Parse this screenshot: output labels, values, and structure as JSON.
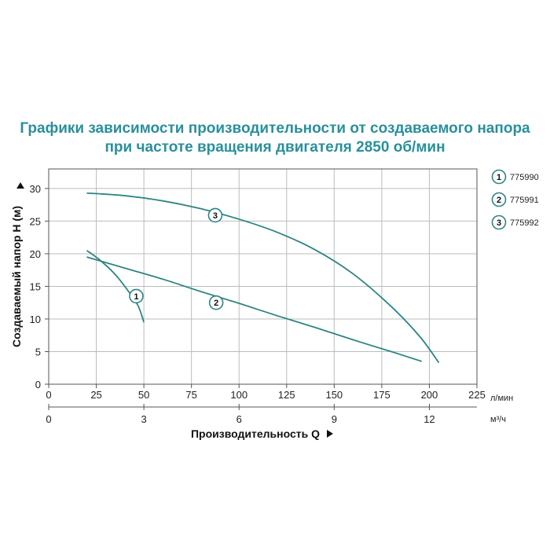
{
  "title_line1": "Графики зависимости производительности от создаваемого напора",
  "title_line2": "при частоте вращения двигателя 2850 об/мин",
  "colors": {
    "title": "#2a8f9c",
    "curve": "#2e8583",
    "grid": "#b9bdbf",
    "frame": "#555555"
  },
  "chart_data": {
    "type": "line",
    "ylabel": "Создаваемый напор Н (м)",
    "xlabel": "Производительность Q",
    "x_unit": "л/мин",
    "x2_unit": "м³/ч",
    "xlim": [
      0,
      225
    ],
    "ylim": [
      0,
      33
    ],
    "x_ticks": [
      0,
      25,
      50,
      75,
      100,
      125,
      150,
      175,
      200,
      225
    ],
    "x2_ticks": [
      0,
      3,
      6,
      9,
      12
    ],
    "y_ticks": [
      0,
      5,
      10,
      15,
      20,
      25,
      30
    ],
    "grid": true,
    "legend_position": "right",
    "series": [
      {
        "name": "775990",
        "marker": "1",
        "label_at": [
          46,
          13.5
        ],
        "x": [
          20,
          27,
          35,
          42,
          47,
          50
        ],
        "y": [
          20.5,
          19,
          16.8,
          14.2,
          12,
          9.5
        ]
      },
      {
        "name": "775991",
        "marker": "2",
        "label_at": [
          88,
          12.5
        ],
        "x": [
          20,
          40,
          60,
          80,
          100,
          120,
          140,
          160,
          180,
          196
        ],
        "y": [
          19.5,
          17.8,
          16.1,
          14.2,
          12.4,
          10.5,
          8.7,
          6.8,
          5,
          3.5
        ]
      },
      {
        "name": "775992",
        "marker": "3",
        "label_at": [
          87.5,
          25.9
        ],
        "x": [
          20,
          40,
          60,
          80,
          100,
          120,
          140,
          160,
          180,
          195,
          205
        ],
        "y": [
          29.3,
          28.9,
          28.1,
          26.9,
          25.3,
          23.3,
          20.6,
          16.9,
          11.9,
          7.3,
          3.3
        ]
      }
    ]
  }
}
